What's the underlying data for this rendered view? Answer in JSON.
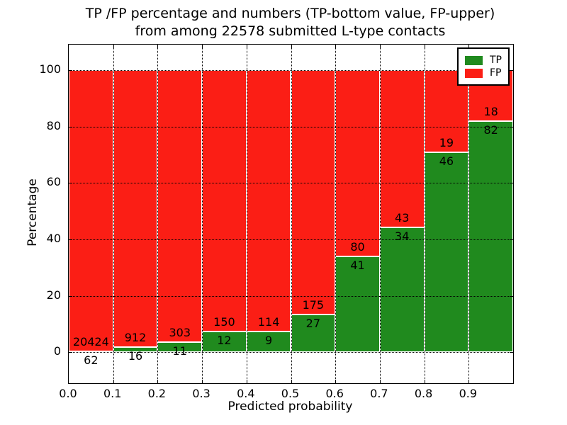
{
  "title": {
    "line1": "TP /FP percentage and numbers (TP-bottom value, FP-upper)",
    "line2": "from among 22578 submitted L-type contacts"
  },
  "axes": {
    "xlabel": "Predicted probability",
    "ylabel": "Percentage",
    "xtick_labels": [
      "0.0",
      "0.1",
      "0.2",
      "0.3",
      "0.4",
      "0.5",
      "0.6",
      "0.7",
      "0.8",
      "0.9"
    ],
    "ytick_labels": [
      "0",
      "20",
      "40",
      "60",
      "80",
      "100"
    ]
  },
  "legend": {
    "items": [
      {
        "label": "TP",
        "color": "#208a1e"
      },
      {
        "label": "FP",
        "color": "#fb1e15"
      }
    ]
  },
  "colors": {
    "tp": "#208a1e",
    "fp": "#fb1e15",
    "grid": "#000000",
    "text": "#000000",
    "background": "#ffffff"
  },
  "chart_data": {
    "type": "bar",
    "stacked": true,
    "title": "TP /FP percentage and numbers (TP-bottom value, FP-upper) from among 22578 submitted L-type contacts",
    "xlabel": "Predicted probability",
    "ylabel": "Percentage",
    "total_contacts": 22578,
    "bin_edges": [
      0.0,
      0.1,
      0.2,
      0.3,
      0.4,
      0.5,
      0.6,
      0.7,
      0.8,
      0.9,
      1.0
    ],
    "xticks": [
      0.0,
      0.1,
      0.2,
      0.3,
      0.4,
      0.5,
      0.6,
      0.7,
      0.8,
      0.9
    ],
    "yticks": [
      0,
      20,
      40,
      60,
      80,
      100
    ],
    "xlim": [
      0.0,
      1.0
    ],
    "ylim": [
      -11,
      109
    ],
    "grid": true,
    "legend_position": "upper right",
    "series": [
      {
        "name": "TP",
        "color": "#208a1e",
        "counts": [
          62,
          16,
          11,
          12,
          9,
          27,
          41,
          34,
          46,
          82
        ]
      },
      {
        "name": "FP",
        "color": "#fb1e15",
        "counts": [
          20424,
          912,
          303,
          150,
          114,
          175,
          80,
          43,
          19,
          18
        ]
      }
    ],
    "tp_pct": [
      0.3,
      1.72,
      3.5,
      7.41,
      7.32,
      13.37,
      33.88,
      44.16,
      70.77,
      82.0
    ],
    "annotation_note": "FP count printed above TP/FP boundary, TP count below it, per bar"
  }
}
